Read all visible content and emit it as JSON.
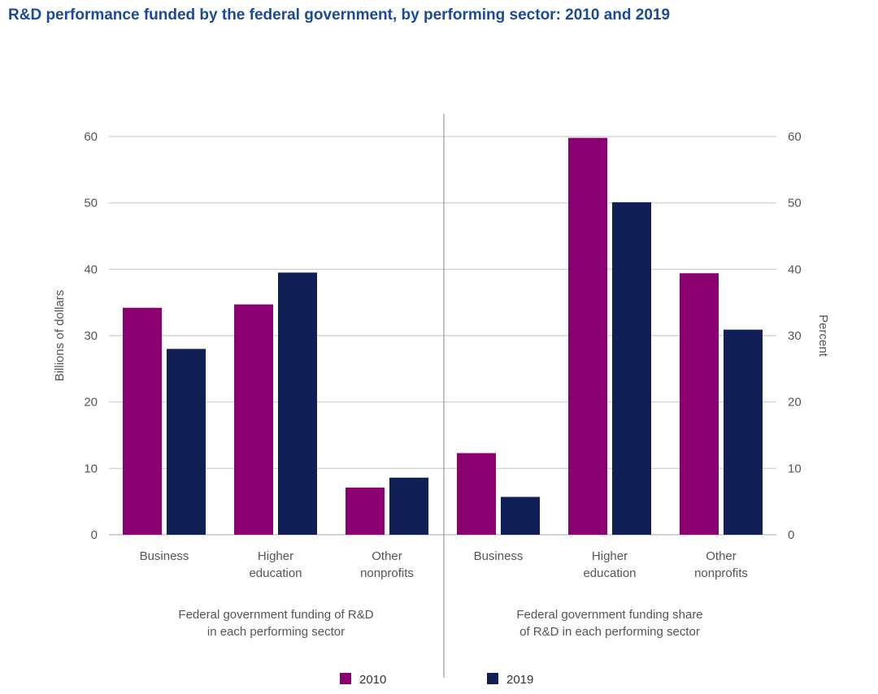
{
  "title": "R&D performance funded by the federal government, by performing sector: 2010 and 2019",
  "colors": {
    "2010": "#8b0071",
    "2019": "#111f57",
    "grid": "#cccccc",
    "divider": "#999999"
  },
  "chart_data": [
    {
      "type": "bar",
      "panel_label_lines": [
        "Federal government funding of R&D",
        "in each performing sector"
      ],
      "ylabel": "Billions of dollars",
      "ylim": [
        0,
        60
      ],
      "yticks": [
        "0",
        "10",
        "20",
        "30",
        "40",
        "50",
        "60"
      ],
      "categories": [
        [
          "Business"
        ],
        [
          "Higher",
          "education"
        ],
        [
          "Other",
          "nonprofits"
        ]
      ],
      "series": [
        {
          "name": "2010",
          "values": [
            34.2,
            34.7,
            7.1
          ]
        },
        {
          "name": "2019",
          "values": [
            28.0,
            39.5,
            8.6
          ]
        }
      ]
    },
    {
      "type": "bar",
      "panel_label_lines": [
        "Federal government funding share",
        "of R&D in each performing sector"
      ],
      "ylabel": "Percent",
      "ylim": [
        0,
        60
      ],
      "yticks": [
        "0",
        "10",
        "20",
        "30",
        "40",
        "50",
        "60"
      ],
      "categories": [
        [
          "Business"
        ],
        [
          "Higher",
          "education"
        ],
        [
          "Other",
          "nonprofits"
        ]
      ],
      "series": [
        {
          "name": "2010",
          "values": [
            12.3,
            59.8,
            39.4
          ]
        },
        {
          "name": "2019",
          "values": [
            5.7,
            50.1,
            30.9
          ]
        }
      ]
    }
  ],
  "legend": [
    {
      "label": "2010",
      "color_key": "2010"
    },
    {
      "label": "2019",
      "color_key": "2019"
    }
  ]
}
